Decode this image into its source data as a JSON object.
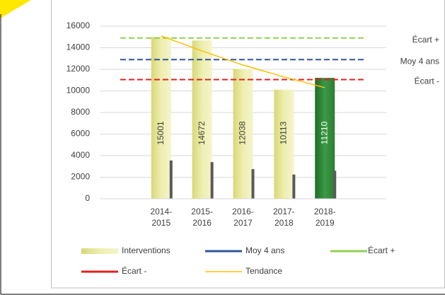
{
  "chart_data": {
    "type": "bar",
    "categories": [
      null,
      "2014-2015",
      "2015-2016",
      "2016-2017",
      "2017-2018",
      "2018-2019",
      null
    ],
    "ylim": [
      0,
      16000
    ],
    "yticks": [
      0,
      2000,
      4000,
      6000,
      8000,
      10000,
      12000,
      14000,
      16000
    ],
    "grid": true,
    "series": [
      {
        "name": "Interventions",
        "type": "bar",
        "color": "#e6e68a",
        "values": [
          null,
          15001,
          14672,
          12038,
          10113,
          11210,
          null
        ],
        "highlight_color": "#2e7d32"
      },
      {
        "type": "bar",
        "color": "#5a5a5a",
        "values": [
          null,
          3550,
          3400,
          2750,
          2250,
          2600,
          null
        ]
      },
      {
        "name": "Moy 4 ans",
        "type": "hline",
        "color": "#2f5597",
        "value": 12900
      },
      {
        "name": "Écart +",
        "type": "hline",
        "color": "#92d050",
        "value": 14900
      },
      {
        "name": "Écart -",
        "type": "hline",
        "color": "#e02020",
        "value": 11050
      },
      {
        "name": "Tendance",
        "type": "line",
        "color": "#ffc000",
        "values": [
          null,
          15100,
          13700,
          12400,
          11300,
          10300,
          null
        ]
      }
    ],
    "legend": [
      0,
      2,
      3,
      4,
      5
    ]
  }
}
